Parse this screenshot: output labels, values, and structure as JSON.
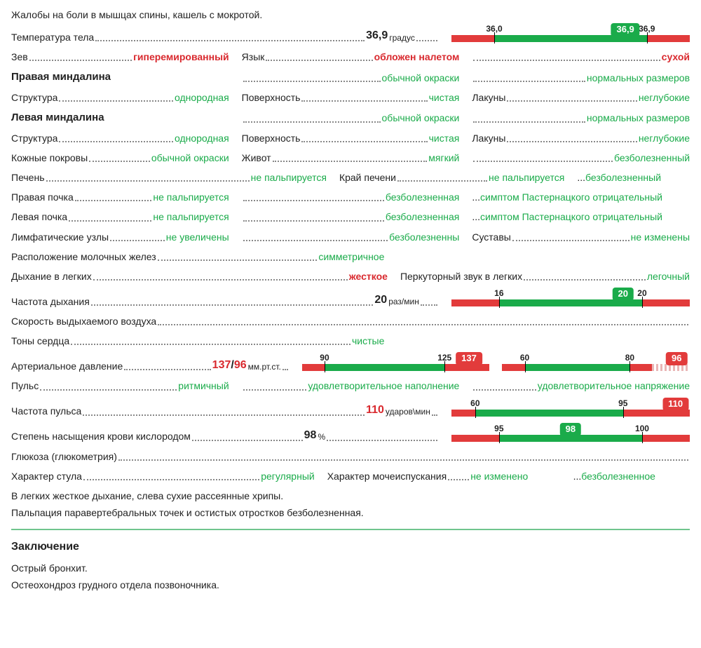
{
  "colors": {
    "green": "#1aab4a",
    "red": "#e23b3b",
    "text": "#222"
  },
  "complaints": "Жалобы на боли в мышцах спины, кашель с мокротой.",
  "temp": {
    "label": "Температура тела",
    "value": "36,9",
    "unit": "градус"
  },
  "tempG": {
    "min": "36,0",
    "max": "36,9",
    "badge": "36,9",
    "badge_pct": 73,
    "segs": [
      [
        "r",
        18
      ],
      [
        "g",
        64
      ],
      [
        "r",
        18
      ]
    ],
    "ticks": [
      [
        18,
        "36,0"
      ],
      [
        82,
        "36,9"
      ]
    ]
  },
  "zev": {
    "label": "Зев",
    "value": "гиперемированный"
  },
  "lang": {
    "label": "Язык",
    "value": "обложен налетом"
  },
  "lang2": {
    "value": "сухой"
  },
  "rTon": {
    "head": "Правая миндалина",
    "color": "обычной окраски",
    "size": "нормальных размеров",
    "struct_l": "Структура",
    "struct_v": "однородная",
    "surf_l": "Поверхность",
    "surf_v": "чистая",
    "lac_l": "Лакуны",
    "lac_v": "неглубокие"
  },
  "lTon": {
    "head": "Левая миндалина",
    "color": "обычной окраски",
    "size": "нормальных размеров",
    "struct_l": "Структура",
    "struct_v": "однородная",
    "surf_l": "Поверхность",
    "surf_v": "чистая",
    "lac_l": "Лакуны",
    "lac_v": "неглубокие"
  },
  "skin": {
    "label": "Кожные покровы",
    "value": "обычной окраски"
  },
  "abd": {
    "label": "Живот",
    "value": "мягкий"
  },
  "abd2": {
    "value": "безболезненный"
  },
  "liver": {
    "label": "Печень",
    "value": "не пальпируется"
  },
  "liverE": {
    "label": "Край печени",
    "value": "не пальпируется"
  },
  "liverP": {
    "value": "безболезненный"
  },
  "rKid": {
    "label": "Правая почка",
    "value": "не пальпируется"
  },
  "rKid2": {
    "value": "безболезненная"
  },
  "rKid3": {
    "value": "симптом Пастернацкого отрицательный"
  },
  "lKid": {
    "label": "Левая почка",
    "value": "не пальпируется"
  },
  "lKid2": {
    "value": "безболезненная"
  },
  "lKid3": {
    "value": "симптом Пастернацкого отрицательный"
  },
  "lymph": {
    "label": "Лимфатические узлы",
    "value": "не увеличены"
  },
  "lymph2": {
    "value": "безболезненны"
  },
  "joints": {
    "label": "Суставы",
    "value": "не изменены"
  },
  "mamm": {
    "label": "Расположение молочных желез",
    "value": "симметричное"
  },
  "breath": {
    "label": "Дыхание в легких",
    "value": "жесткое"
  },
  "perc": {
    "label": "Перкуторный звук в легких",
    "value": "легочный"
  },
  "rr": {
    "label": "Частота дыхания",
    "value": "20",
    "unit": "раз/мин"
  },
  "rrG": {
    "badge": "20",
    "badge_pct": 72,
    "segs": [
      [
        "r",
        20
      ],
      [
        "g",
        60
      ],
      [
        "r",
        20
      ]
    ],
    "ticks": [
      [
        20,
        "16"
      ],
      [
        80,
        "20"
      ]
    ]
  },
  "pef": {
    "label": "Скорость выдыхаемого воздуха"
  },
  "heart": {
    "label": "Тоны сердца",
    "value": "чистые"
  },
  "bp": {
    "label": "Артериальное давление",
    "sys": "137",
    "dia": "96",
    "unit": "мм.рт.ст."
  },
  "bpSysG": {
    "badge": "137",
    "badge_pct": 89,
    "badge_cls": "rb",
    "segs": [
      [
        "r",
        12
      ],
      [
        "g",
        64
      ],
      [
        "r",
        24
      ]
    ],
    "ticks": [
      [
        12,
        "90"
      ],
      [
        76,
        "125"
      ]
    ]
  },
  "bpDiaG": {
    "badge": "96",
    "badge_pct": 93,
    "badge_cls": "rb",
    "segs": [
      [
        "r",
        12
      ],
      [
        "g",
        56
      ],
      [
        "r",
        12
      ],
      [
        "rd",
        20
      ]
    ],
    "ticks": [
      [
        12,
        "60"
      ],
      [
        68,
        "80"
      ]
    ]
  },
  "pulse": {
    "label": "Пульс",
    "value": "ритмичный"
  },
  "pulse2": {
    "value": "удовлетворительное наполнение"
  },
  "pulse3": {
    "value": "удовлетворительное напряжение"
  },
  "hr": {
    "label": "Частота пульса",
    "value": "110",
    "unit": "ударов\\мин"
  },
  "hrG": {
    "badge": "110",
    "badge_pct": 94,
    "badge_cls": "rb",
    "segs": [
      [
        "r",
        10
      ],
      [
        "g",
        62
      ],
      [
        "r",
        28
      ]
    ],
    "ticks": [
      [
        10,
        "60"
      ],
      [
        72,
        "95"
      ]
    ]
  },
  "spo2": {
    "label": "Степень насыщения крови кислородом",
    "value": "98",
    "unit": "%"
  },
  "spo2G": {
    "badge": "98",
    "badge_pct": 50,
    "badge_cls": "gb",
    "segs": [
      [
        "r",
        20
      ],
      [
        "g",
        60
      ],
      [
        "r",
        20
      ]
    ],
    "ticks": [
      [
        20,
        "95"
      ],
      [
        80,
        "100"
      ]
    ]
  },
  "gluc": {
    "label": "Глюкоза (глюкометрия)"
  },
  "stool": {
    "label": "Характер стула",
    "value": "регулярный"
  },
  "urine": {
    "label": "Характер мочеиспускания",
    "value": "не изменено"
  },
  "urine2": {
    "value": "безболезненное"
  },
  "exam1": "В легких жесткое дыхание, слева сухие рассеянные хрипы.",
  "exam2": "Пальпация паравертебральных точек и остистых отростков безболезненная.",
  "conclHead": "Заключение",
  "concl1": "Острый бронхит.",
  "concl2": "Остеохондроз грудного отдела позвоночника."
}
